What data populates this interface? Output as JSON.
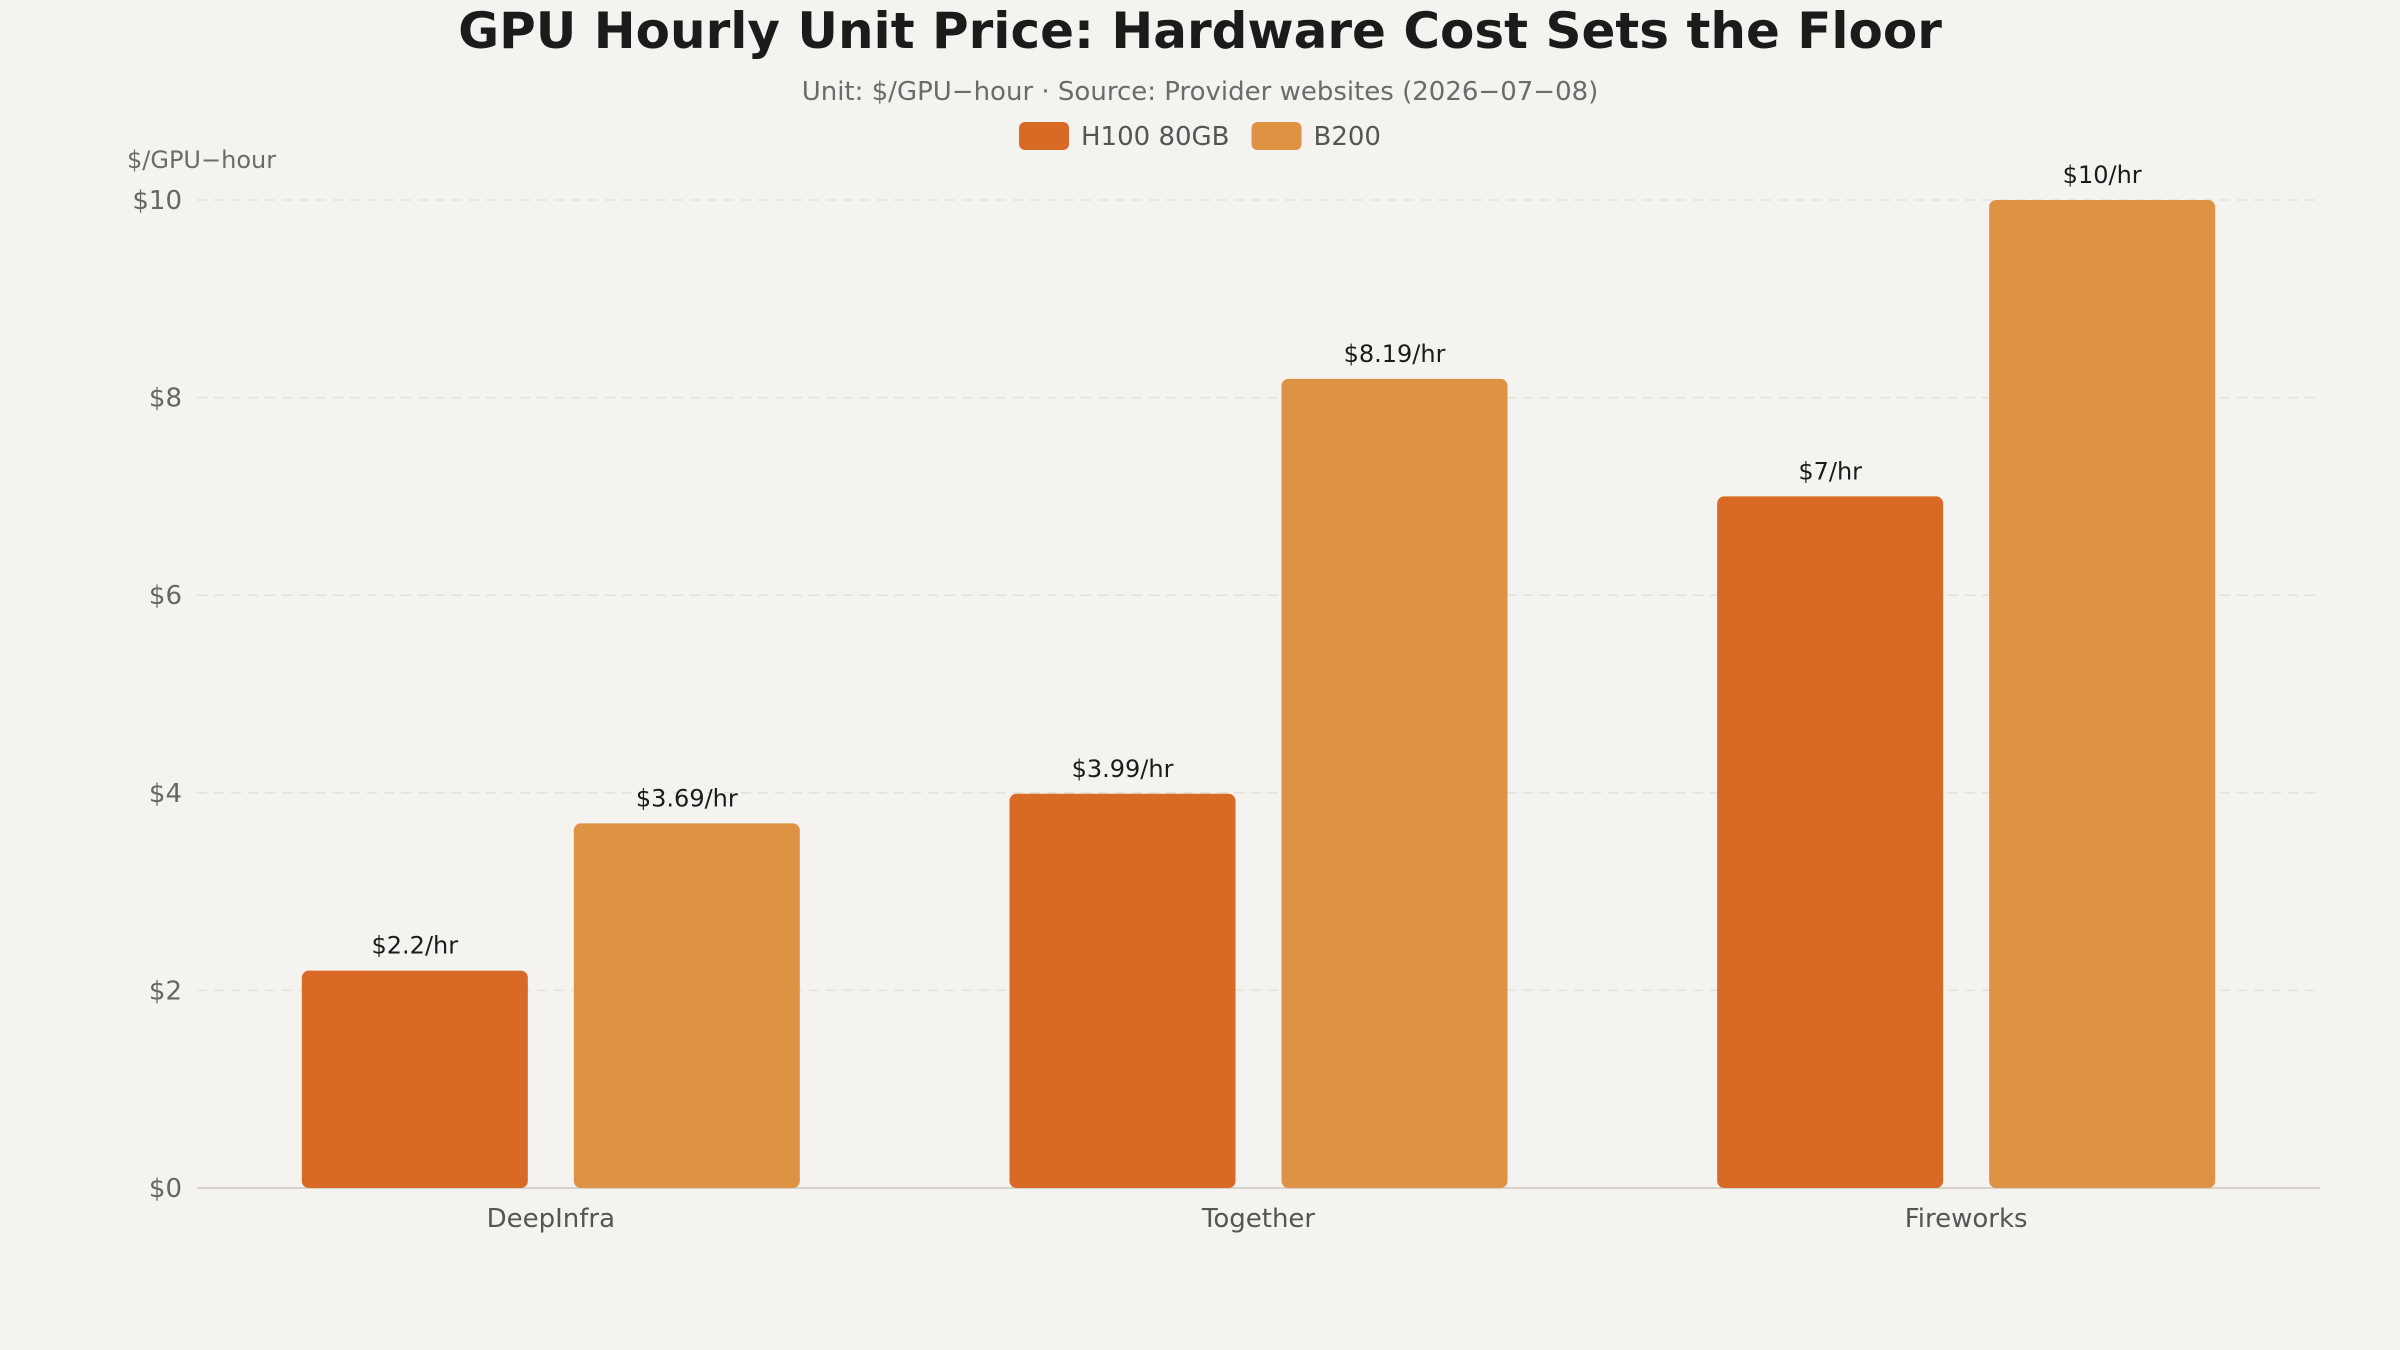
{
  "chart_data": {
    "type": "bar",
    "title": "GPU Hourly Unit Price: Hardware Cost Sets the Floor",
    "subtitle": "Unit: $/GPU−hour · Source: Provider websites (2026−07−08)",
    "ylabel": "$/GPU−hour",
    "xlabel": "",
    "categories": [
      "DeepInfra",
      "Together",
      "Fireworks"
    ],
    "series": [
      {
        "name": "H100 80GB",
        "color": "#d96a26",
        "values": [
          2.2,
          3.99,
          7
        ],
        "labels": [
          "$2.2/hr",
          "$3.99/hr",
          "$7/hr"
        ]
      },
      {
        "name": "B200",
        "color": "#de9243",
        "values": [
          3.69,
          8.19,
          10
        ],
        "labels": [
          "$3.69/hr",
          "$8.19/hr",
          "$10/hr"
        ]
      }
    ],
    "ylim": [
      0,
      10
    ],
    "yticks": [
      0,
      2,
      4,
      6,
      8,
      10
    ],
    "ytick_labels": [
      "$0",
      "$2",
      "$4",
      "$6",
      "$8",
      "$10"
    ],
    "grid": true,
    "legend_position": "top-center"
  }
}
